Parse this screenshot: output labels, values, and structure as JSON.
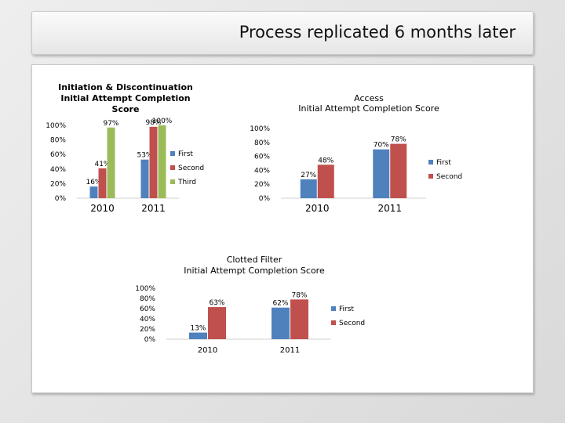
{
  "slide": {
    "title": "Process replicated 6 months later"
  },
  "chart_data": [
    {
      "type": "bar",
      "title_lines": [
        "Initiation & Discontinuation",
        "Initial Attempt Completion",
        "Score"
      ],
      "categories": [
        "2010",
        "2011"
      ],
      "ylim": [
        0,
        100
      ],
      "yticks": [
        "0%",
        "20%",
        "40%",
        "60%",
        "80%",
        "100%"
      ],
      "legend_position": "right",
      "series": [
        {
          "name": "First",
          "color": "#4f81bd",
          "values": [
            16,
            53
          ],
          "labels": [
            "16%",
            "53%"
          ]
        },
        {
          "name": "Second",
          "color": "#c0504d",
          "values": [
            41,
            98
          ],
          "labels": [
            "41%",
            "98%"
          ]
        },
        {
          "name": "Third",
          "color": "#9bbb59",
          "values": [
            97,
            100
          ],
          "labels": [
            "97%",
            "100%"
          ]
        }
      ]
    },
    {
      "type": "bar",
      "title_lines": [
        "Access",
        "Initial Attempt Completion Score"
      ],
      "categories": [
        "2010",
        "2011"
      ],
      "ylim": [
        0,
        100
      ],
      "yticks": [
        "0%",
        "20%",
        "40%",
        "60%",
        "80%",
        "100%"
      ],
      "legend_position": "right",
      "series": [
        {
          "name": "First",
          "color": "#4f81bd",
          "values": [
            27,
            70
          ],
          "labels": [
            "27%",
            "70%"
          ]
        },
        {
          "name": "Second",
          "color": "#c0504d",
          "values": [
            48,
            78
          ],
          "labels": [
            "48%",
            "78%"
          ]
        }
      ]
    },
    {
      "type": "bar",
      "title_lines": [
        "Clotted Filter",
        "Initial Attempt Completion Score"
      ],
      "categories": [
        "2010",
        "2011"
      ],
      "ylim": [
        0,
        100
      ],
      "yticks": [
        "0%",
        "20%",
        "40%",
        "60%",
        "80%",
        "100%"
      ],
      "legend_position": "right",
      "series": [
        {
          "name": "First",
          "color": "#4f81bd",
          "values": [
            13,
            62
          ],
          "labels": [
            "13%",
            "62%"
          ]
        },
        {
          "name": "Second",
          "color": "#c0504d",
          "values": [
            63,
            78
          ],
          "labels": [
            "63%",
            "78%"
          ]
        }
      ]
    }
  ]
}
